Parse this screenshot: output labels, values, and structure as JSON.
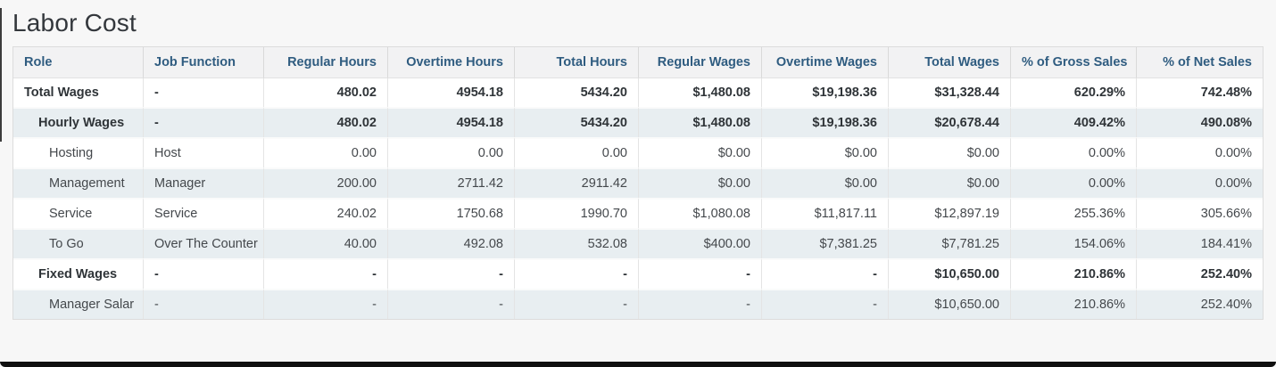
{
  "page": {
    "title": "Labor Cost"
  },
  "colors": {
    "page_background": "#f7f7f7",
    "header_background": "#f2f2f3",
    "header_text": "#2f5c80",
    "shaded_row_background": "#e8eef1",
    "body_text": "#44484c",
    "bold_row_text": "#2f3438",
    "table_border": "#dcdcdc",
    "window_edge": "#101010"
  },
  "table": {
    "columns": [
      {
        "key": "role",
        "label": "Role",
        "align": "left",
        "width": 146
      },
      {
        "key": "job-function",
        "label": "Job Function",
        "align": "left",
        "width": 135
      },
      {
        "key": "regular-hours",
        "label": "Regular Hours",
        "align": "right",
        "width": 139
      },
      {
        "key": "overtime-hours",
        "label": "Overtime Hours",
        "align": "right",
        "width": 142
      },
      {
        "key": "total-hours",
        "label": "Total Hours",
        "align": "right",
        "width": 139
      },
      {
        "key": "regular-wages",
        "label": "Regular Wages",
        "align": "right",
        "width": 138
      },
      {
        "key": "overtime-wages",
        "label": "Overtime Wages",
        "align": "right",
        "width": 142
      },
      {
        "key": "total-wages",
        "label": "Total Wages",
        "align": "right",
        "width": 137
      },
      {
        "key": "pct-of-gross-sales",
        "label": "% of Gross Sales",
        "align": "right",
        "width": 141
      },
      {
        "key": "pct-of-net-sales",
        "label": "% of Net Sales",
        "align": "right",
        "width": 141
      }
    ],
    "rows": [
      {
        "bold": true,
        "shaded": false,
        "indent": 0,
        "cells": [
          "Total Wages",
          "-",
          "480.02",
          "4954.18",
          "5434.20",
          "$1,480.08",
          "$19,198.36",
          "$31,328.44",
          "620.29%",
          "742.48%"
        ]
      },
      {
        "bold": true,
        "shaded": true,
        "indent": 1,
        "cells": [
          "Hourly Wages",
          "-",
          "480.02",
          "4954.18",
          "5434.20",
          "$1,480.08",
          "$19,198.36",
          "$20,678.44",
          "409.42%",
          "490.08%"
        ]
      },
      {
        "bold": false,
        "shaded": false,
        "indent": 2,
        "cells": [
          "Hosting",
          "Host",
          "0.00",
          "0.00",
          "0.00",
          "$0.00",
          "$0.00",
          "$0.00",
          "0.00%",
          "0.00%"
        ]
      },
      {
        "bold": false,
        "shaded": true,
        "indent": 2,
        "cells": [
          "Management",
          "Manager",
          "200.00",
          "2711.42",
          "2911.42",
          "$0.00",
          "$0.00",
          "$0.00",
          "0.00%",
          "0.00%"
        ]
      },
      {
        "bold": false,
        "shaded": false,
        "indent": 2,
        "cells": [
          "Service",
          "Service",
          "240.02",
          "1750.68",
          "1990.70",
          "$1,080.08",
          "$11,817.11",
          "$12,897.19",
          "255.36%",
          "305.66%"
        ]
      },
      {
        "bold": false,
        "shaded": true,
        "indent": 2,
        "cells": [
          "To Go",
          "Over The Counter",
          "40.00",
          "492.08",
          "532.08",
          "$400.00",
          "$7,381.25",
          "$7,781.25",
          "154.06%",
          "184.41%"
        ]
      },
      {
        "bold": true,
        "shaded": false,
        "indent": 1,
        "cells": [
          "Fixed Wages",
          "-",
          "-",
          "-",
          "-",
          "-",
          "-",
          "$10,650.00",
          "210.86%",
          "252.40%"
        ]
      },
      {
        "bold": false,
        "shaded": true,
        "indent": 2,
        "cells": [
          "Manager Salar",
          "-",
          "-",
          "-",
          "-",
          "-",
          "-",
          "$10,650.00",
          "210.86%",
          "252.40%"
        ]
      }
    ]
  }
}
